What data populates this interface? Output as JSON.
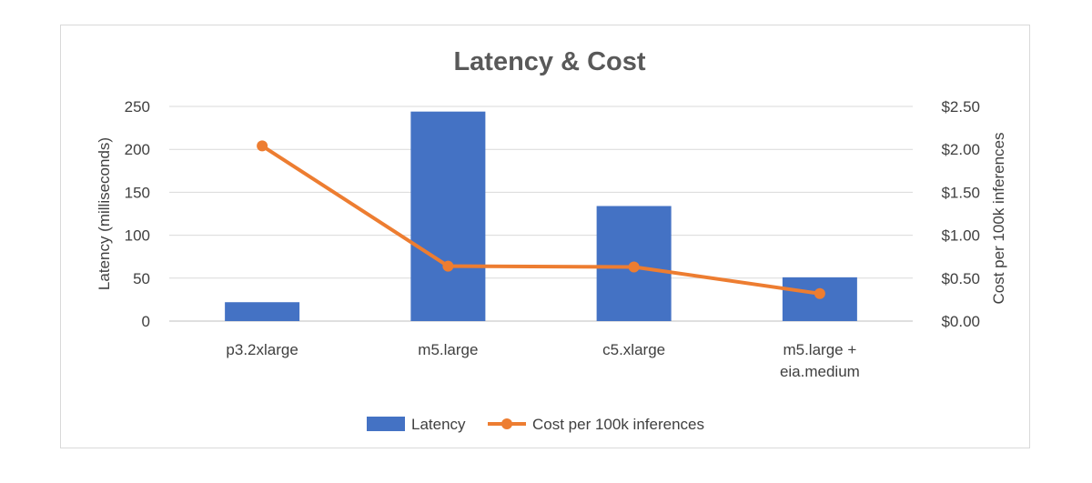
{
  "chart_data": {
    "type": "bar+line",
    "title": "Latency & Cost",
    "categories": [
      [
        "p3.2xlarge"
      ],
      [
        "m5.large"
      ],
      [
        "c5.xlarge"
      ],
      [
        "m5.large +",
        "eia.medium"
      ]
    ],
    "series": [
      {
        "name": "Latency",
        "type": "bar",
        "axis": "left",
        "color": "#4472C4",
        "values": [
          22,
          244,
          134,
          51
        ]
      },
      {
        "name": "Cost per 100k inferences",
        "type": "line",
        "axis": "right",
        "color": "#ED7D31",
        "values": [
          2.04,
          0.64,
          0.63,
          0.32
        ]
      }
    ],
    "ylabel_left": "Latency (milliseconds)",
    "ylabel_right": "Cost per 100k inferences",
    "ylim_left": [
      0,
      250
    ],
    "ylim_right": [
      0,
      2.5
    ],
    "yticks_left": [
      "0",
      "50",
      "100",
      "150",
      "200",
      "250"
    ],
    "yticks_right": [
      "$0.00",
      "$0.50",
      "$1.00",
      "$1.50",
      "$2.00",
      "$2.50"
    ],
    "grid": true,
    "legend": "bottom",
    "legend_items": [
      "Latency",
      "Cost per 100k inferences"
    ]
  }
}
